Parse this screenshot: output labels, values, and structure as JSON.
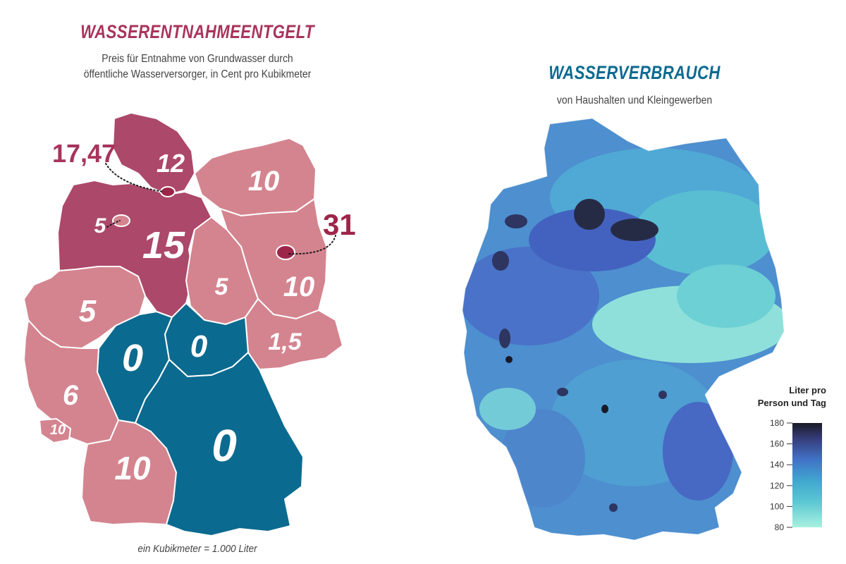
{
  "left": {
    "title": "WASSERENTNAHMEENTGELT",
    "subtitle_line1": "Preis für Entnahme von Grundwasser durch",
    "subtitle_line2": "öffentliche Wasserversorger, in Cent pro Kubikmeter",
    "footnote": "ein Kubikmeter = 1.000 Liter",
    "title_color": "#a8345a",
    "colors": {
      "high": "#ac4869",
      "medium": "#d4848f",
      "zero": "#0b6a8f",
      "dark": "#9d2549"
    },
    "values": {
      "schleswig_holstein": "12",
      "hamburg": "17,47",
      "niedersachsen": "15",
      "bremen": "5",
      "mecklenburg_vorpommern": "10",
      "brandenburg": "10",
      "berlin": "31",
      "sachsen_anhalt": "5",
      "sachsen": "1,5",
      "nordrhein_westfalen": "5",
      "hessen": "0",
      "thueringen": "0",
      "rheinland_pfalz": "6",
      "saarland": "10",
      "baden_wuerttemberg": "10",
      "bayern": "0"
    }
  },
  "right": {
    "title": "WASSERVERBRAUCH",
    "subtitle": "von Haushalten und Kleingewerben",
    "title_color": "#0d6b91",
    "legend": {
      "title_line1": "Liter pro",
      "title_line2": "Person und Tag",
      "ticks": [
        "180",
        "160",
        "140",
        "120",
        "100",
        "80"
      ],
      "min": 80,
      "max": 180
    }
  }
}
